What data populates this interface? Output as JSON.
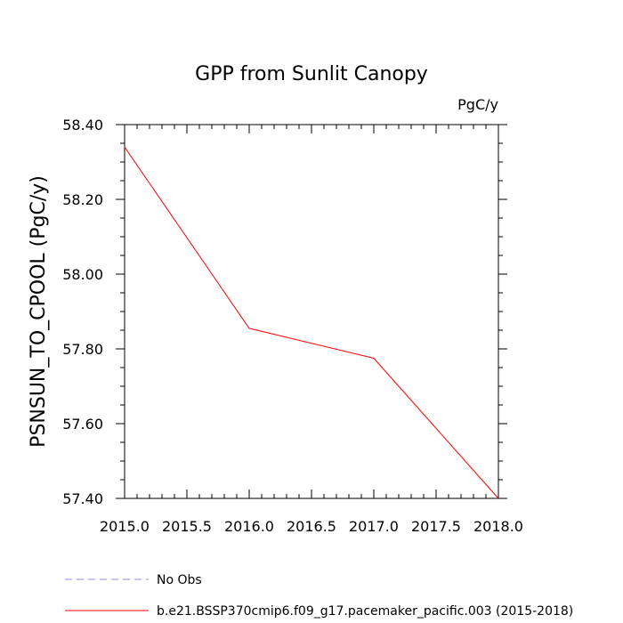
{
  "chart_data": {
    "type": "line",
    "title": "GPP from Sunlit Canopy",
    "units_label": "PgC/y",
    "xlabel": "",
    "ylabel": "PSNSUN_TO_CPOOL  (PgC/y)",
    "xlim": [
      2015.0,
      2018.0
    ],
    "ylim": [
      57.4,
      58.4
    ],
    "xticks": [
      "2015.0",
      "2015.5",
      "2016.0",
      "2016.5",
      "2017.0",
      "2017.5",
      "2018.0"
    ],
    "yticks": [
      "57.40",
      "57.60",
      "57.80",
      "58.00",
      "58.20",
      "58.40"
    ],
    "series": [
      {
        "name": "b.e21.BSSP370cmip6.f09_g17.pacemaker_pacific.003 (2015-2018)",
        "color": "#ff0000",
        "dash": "solid",
        "x": [
          2015.0,
          2016.0,
          2017.0,
          2018.0
        ],
        "values": [
          58.34,
          57.855,
          57.775,
          57.4
        ]
      }
    ],
    "legend": [
      {
        "label": "No Obs",
        "color": "#8a8ae6",
        "dash": "dashed"
      },
      {
        "label": "b.e21.BSSP370cmip6.f09_g17.pacemaker_pacific.003 (2015-2018)",
        "color": "#ff0000",
        "dash": "solid"
      }
    ]
  }
}
